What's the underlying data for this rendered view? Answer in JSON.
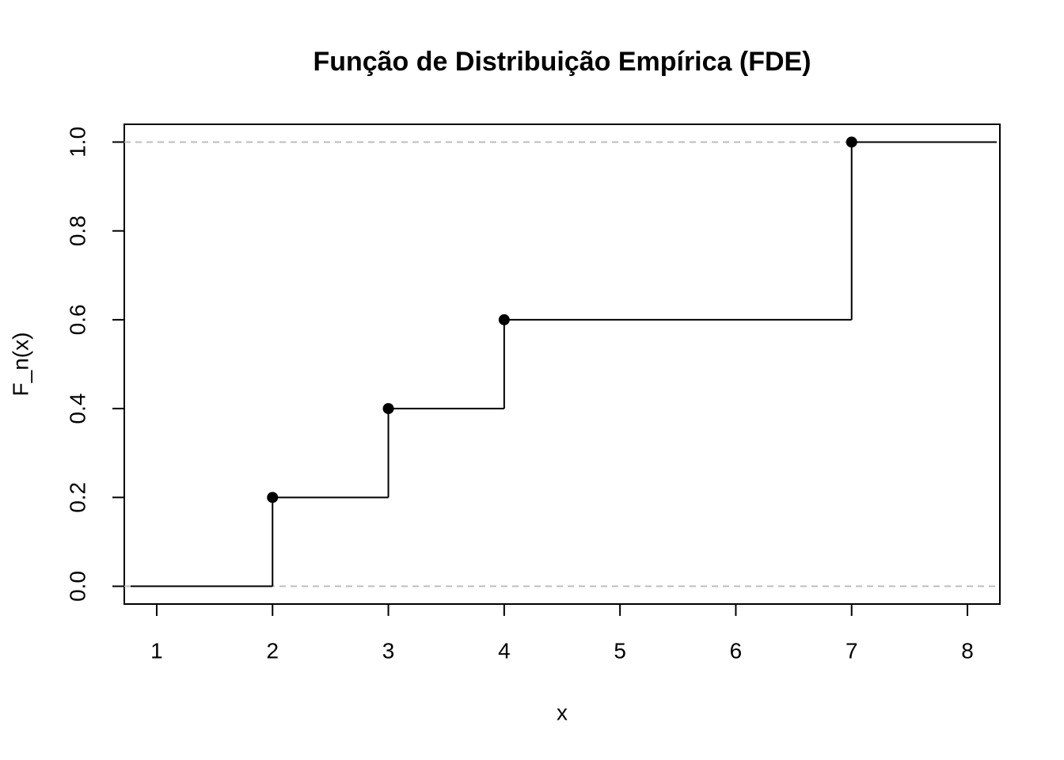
{
  "chart_data": {
    "type": "ecdf",
    "title": "Função de Distribuição Empírica (FDE)",
    "x_label": "x",
    "y_label": "F_n(x)",
    "x": [
      2,
      3,
      4,
      7
    ],
    "values": [
      0.2,
      0.4,
      0.6,
      1.0
    ],
    "color": "#000000",
    "reference_lines": [
      0,
      1
    ],
    "reference_color": "#bdbdbd",
    "xlim": [
      0.72,
      8.28
    ],
    "ylim": [
      -0.04,
      1.04
    ],
    "xticks": [
      1,
      2,
      3,
      4,
      5,
      6,
      7,
      8
    ],
    "yticks": [
      {
        "value": 0,
        "label": "0.0"
      },
      0.2,
      0.4,
      0.6,
      0.8,
      {
        "value": 1,
        "label": "1.0"
      }
    ]
  }
}
